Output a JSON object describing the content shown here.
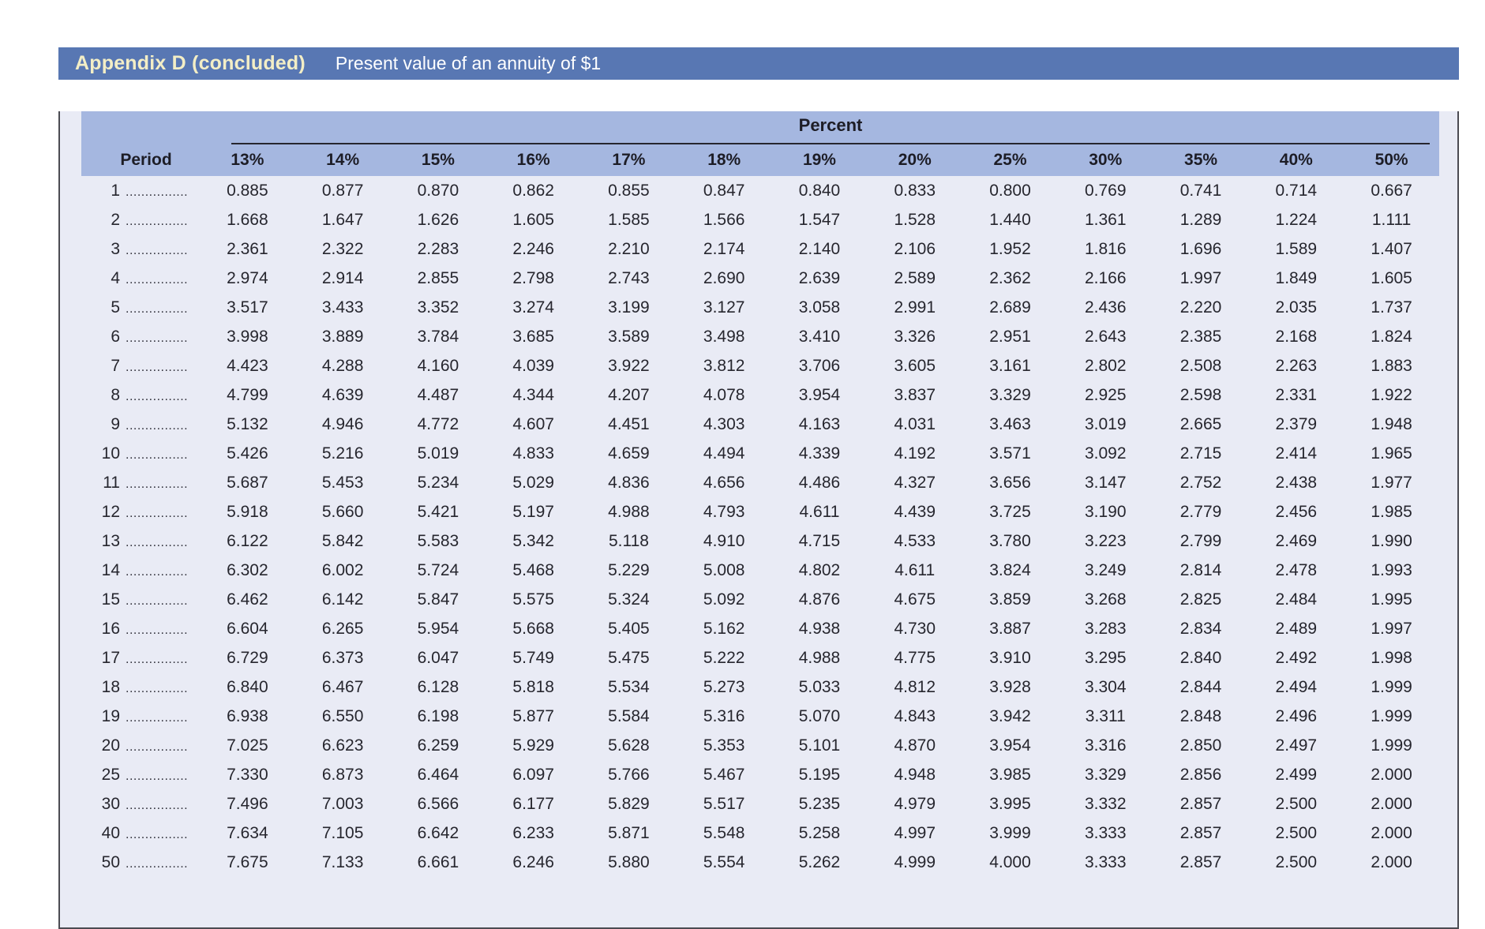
{
  "header": {
    "title": "Appendix D (concluded)",
    "subtitle": "Present value of an annuity of $1"
  },
  "colors": {
    "title_bar": "#5877b3",
    "title_text": "#f3eec6",
    "subtitle_text": "#ffffff",
    "band": "#a5b7e0",
    "panel_bg": "#e9ebf5",
    "text": "#26262e",
    "frame": "#4b4b52"
  },
  "table": {
    "group_header": "Percent",
    "period_label": "Period",
    "dot_leader": "................",
    "columns": [
      "13%",
      "14%",
      "15%",
      "16%",
      "17%",
      "18%",
      "19%",
      "20%",
      "25%",
      "30%",
      "35%",
      "40%",
      "50%"
    ],
    "rows": [
      {
        "period": "1",
        "values": [
          "0.885",
          "0.877",
          "0.870",
          "0.862",
          "0.855",
          "0.847",
          "0.840",
          "0.833",
          "0.800",
          "0.769",
          "0.741",
          "0.714",
          "0.667"
        ]
      },
      {
        "period": "2",
        "values": [
          "1.668",
          "1.647",
          "1.626",
          "1.605",
          "1.585",
          "1.566",
          "1.547",
          "1.528",
          "1.440",
          "1.361",
          "1.289",
          "1.224",
          "1.111"
        ]
      },
      {
        "period": "3",
        "values": [
          "2.361",
          "2.322",
          "2.283",
          "2.246",
          "2.210",
          "2.174",
          "2.140",
          "2.106",
          "1.952",
          "1.816",
          "1.696",
          "1.589",
          "1.407"
        ]
      },
      {
        "period": "4",
        "values": [
          "2.974",
          "2.914",
          "2.855",
          "2.798",
          "2.743",
          "2.690",
          "2.639",
          "2.589",
          "2.362",
          "2.166",
          "1.997",
          "1.849",
          "1.605"
        ]
      },
      {
        "period": "5",
        "values": [
          "3.517",
          "3.433",
          "3.352",
          "3.274",
          "3.199",
          "3.127",
          "3.058",
          "2.991",
          "2.689",
          "2.436",
          "2.220",
          "2.035",
          "1.737"
        ]
      },
      {
        "period": "6",
        "values": [
          "3.998",
          "3.889",
          "3.784",
          "3.685",
          "3.589",
          "3.498",
          "3.410",
          "3.326",
          "2.951",
          "2.643",
          "2.385",
          "2.168",
          "1.824"
        ]
      },
      {
        "period": "7",
        "values": [
          "4.423",
          "4.288",
          "4.160",
          "4.039",
          "3.922",
          "3.812",
          "3.706",
          "3.605",
          "3.161",
          "2.802",
          "2.508",
          "2.263",
          "1.883"
        ]
      },
      {
        "period": "8",
        "values": [
          "4.799",
          "4.639",
          "4.487",
          "4.344",
          "4.207",
          "4.078",
          "3.954",
          "3.837",
          "3.329",
          "2.925",
          "2.598",
          "2.331",
          "1.922"
        ]
      },
      {
        "period": "9",
        "values": [
          "5.132",
          "4.946",
          "4.772",
          "4.607",
          "4.451",
          "4.303",
          "4.163",
          "4.031",
          "3.463",
          "3.019",
          "2.665",
          "2.379",
          "1.948"
        ]
      },
      {
        "period": "10",
        "values": [
          "5.426",
          "5.216",
          "5.019",
          "4.833",
          "4.659",
          "4.494",
          "4.339",
          "4.192",
          "3.571",
          "3.092",
          "2.715",
          "2.414",
          "1.965"
        ]
      },
      {
        "period": "11",
        "values": [
          "5.687",
          "5.453",
          "5.234",
          "5.029",
          "4.836",
          "4.656",
          "4.486",
          "4.327",
          "3.656",
          "3.147",
          "2.752",
          "2.438",
          "1.977"
        ]
      },
      {
        "period": "12",
        "values": [
          "5.918",
          "5.660",
          "5.421",
          "5.197",
          "4.988",
          "4.793",
          "4.611",
          "4.439",
          "3.725",
          "3.190",
          "2.779",
          "2.456",
          "1.985"
        ]
      },
      {
        "period": "13",
        "values": [
          "6.122",
          "5.842",
          "5.583",
          "5.342",
          "5.118",
          "4.910",
          "4.715",
          "4.533",
          "3.780",
          "3.223",
          "2.799",
          "2.469",
          "1.990"
        ]
      },
      {
        "period": "14",
        "values": [
          "6.302",
          "6.002",
          "5.724",
          "5.468",
          "5.229",
          "5.008",
          "4.802",
          "4.611",
          "3.824",
          "3.249",
          "2.814",
          "2.478",
          "1.993"
        ]
      },
      {
        "period": "15",
        "values": [
          "6.462",
          "6.142",
          "5.847",
          "5.575",
          "5.324",
          "5.092",
          "4.876",
          "4.675",
          "3.859",
          "3.268",
          "2.825",
          "2.484",
          "1.995"
        ]
      },
      {
        "period": "16",
        "values": [
          "6.604",
          "6.265",
          "5.954",
          "5.668",
          "5.405",
          "5.162",
          "4.938",
          "4.730",
          "3.887",
          "3.283",
          "2.834",
          "2.489",
          "1.997"
        ]
      },
      {
        "period": "17",
        "values": [
          "6.729",
          "6.373",
          "6.047",
          "5.749",
          "5.475",
          "5.222",
          "4.988",
          "4.775",
          "3.910",
          "3.295",
          "2.840",
          "2.492",
          "1.998"
        ]
      },
      {
        "period": "18",
        "values": [
          "6.840",
          "6.467",
          "6.128",
          "5.818",
          "5.534",
          "5.273",
          "5.033",
          "4.812",
          "3.928",
          "3.304",
          "2.844",
          "2.494",
          "1.999"
        ]
      },
      {
        "period": "19",
        "values": [
          "6.938",
          "6.550",
          "6.198",
          "5.877",
          "5.584",
          "5.316",
          "5.070",
          "4.843",
          "3.942",
          "3.311",
          "2.848",
          "2.496",
          "1.999"
        ]
      },
      {
        "period": "20",
        "values": [
          "7.025",
          "6.623",
          "6.259",
          "5.929",
          "5.628",
          "5.353",
          "5.101",
          "4.870",
          "3.954",
          "3.316",
          "2.850",
          "2.497",
          "1.999"
        ]
      },
      {
        "period": "25",
        "values": [
          "7.330",
          "6.873",
          "6.464",
          "6.097",
          "5.766",
          "5.467",
          "5.195",
          "4.948",
          "3.985",
          "3.329",
          "2.856",
          "2.499",
          "2.000"
        ]
      },
      {
        "period": "30",
        "values": [
          "7.496",
          "7.003",
          "6.566",
          "6.177",
          "5.829",
          "5.517",
          "5.235",
          "4.979",
          "3.995",
          "3.332",
          "2.857",
          "2.500",
          "2.000"
        ]
      },
      {
        "period": "40",
        "values": [
          "7.634",
          "7.105",
          "6.642",
          "6.233",
          "5.871",
          "5.548",
          "5.258",
          "4.997",
          "3.999",
          "3.333",
          "2.857",
          "2.500",
          "2.000"
        ]
      },
      {
        "period": "50",
        "values": [
          "7.675",
          "7.133",
          "6.661",
          "6.246",
          "5.880",
          "5.554",
          "5.262",
          "4.999",
          "4.000",
          "3.333",
          "2.857",
          "2.500",
          "2.000"
        ]
      }
    ]
  }
}
